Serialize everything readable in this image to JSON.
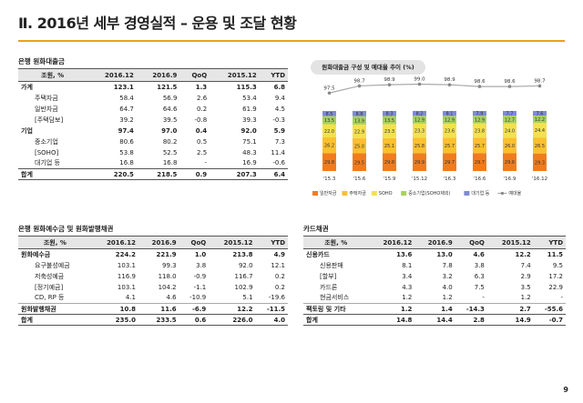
{
  "title": "Ⅱ. 2016년 세부 경영실적 – 운용 및 조달 현황",
  "page_number": "9",
  "loans": {
    "section_title": "은행 원화대출금",
    "headers": [
      "조원, %",
      "2016.12",
      "2016.9",
      "QoQ",
      "2015.12",
      "YTD"
    ],
    "rows": [
      {
        "label": "가계",
        "level": 0,
        "v": [
          "123.1",
          "121.5",
          "1.3",
          "115.3",
          "6.8"
        ]
      },
      {
        "label": "주택자금",
        "level": 1,
        "v": [
          "58.4",
          "56.9",
          "2.6",
          "53.4",
          "9.4"
        ]
      },
      {
        "label": "일반자금",
        "level": 1,
        "v": [
          "64.7",
          "64.6",
          "0.2",
          "61.9",
          "4.5"
        ]
      },
      {
        "label": "[주택담보]",
        "level": 2,
        "v": [
          "39.2",
          "39.5",
          "-0.8",
          "39.3",
          "-0.3"
        ]
      },
      {
        "label": "기업",
        "level": 0,
        "v": [
          "97.4",
          "97.0",
          "0.4",
          "92.0",
          "5.9"
        ]
      },
      {
        "label": "중소기업",
        "level": 1,
        "v": [
          "80.6",
          "80.2",
          "0.5",
          "75.1",
          "7.3"
        ]
      },
      {
        "label": "[SOHO]",
        "level": 2,
        "v": [
          "53.8",
          "52.5",
          "2.5",
          "48.3",
          "11.4"
        ]
      },
      {
        "label": "대기업 등",
        "level": 1,
        "v": [
          "16.8",
          "16.8",
          "-",
          "16.9",
          "-0.6"
        ]
      },
      {
        "label": "합계",
        "level": 0,
        "total": true,
        "v": [
          "220.5",
          "218.5",
          "0.9",
          "207.3",
          "6.4"
        ]
      }
    ]
  },
  "deposits": {
    "section_title": "은행 원화예수금 및 원화발행채권",
    "headers": [
      "조원, %",
      "2016.12",
      "2016.9",
      "QoQ",
      "2015.12",
      "YTD"
    ],
    "rows": [
      {
        "label": "원화예수금",
        "level": 0,
        "v": [
          "224.2",
          "221.9",
          "1.0",
          "213.8",
          "4.9"
        ]
      },
      {
        "label": "요구불성예금",
        "level": 1,
        "v": [
          "103.1",
          "99.3",
          "3.8",
          "92.0",
          "12.1"
        ]
      },
      {
        "label": "저축성예금",
        "level": 1,
        "v": [
          "116.9",
          "118.0",
          "-0.9",
          "116.7",
          "0.2"
        ]
      },
      {
        "label": "[정기예금]",
        "level": 2,
        "v": [
          "103.1",
          "104.2",
          "-1.1",
          "102.9",
          "0.2"
        ]
      },
      {
        "label": "CD, RP 등",
        "level": 1,
        "v": [
          "4.1",
          "4.6",
          "-10.9",
          "5.1",
          "-19.6"
        ]
      },
      {
        "label": "원화발행채권",
        "level": 0,
        "sep": true,
        "v": [
          "10.8",
          "11.6",
          "-6.9",
          "12.2",
          "-11.5"
        ]
      },
      {
        "label": "합계",
        "level": 0,
        "total": true,
        "v": [
          "235.0",
          "233.5",
          "0.6",
          "226.0",
          "4.0"
        ]
      }
    ]
  },
  "cards": {
    "section_title": "카드채권",
    "headers": [
      "조원, %",
      "2016.12",
      "2016.9",
      "QoQ",
      "2015.12",
      "YTD"
    ],
    "rows": [
      {
        "label": "신용카드",
        "level": 0,
        "v": [
          "13.6",
          "13.0",
          "4.6",
          "12.2",
          "11.5"
        ]
      },
      {
        "label": "신용판매",
        "level": 1,
        "v": [
          "8.1",
          "7.8",
          "3.8",
          "7.4",
          "9.5"
        ]
      },
      {
        "label": "[할부]",
        "level": 2,
        "v": [
          "3.4",
          "3.2",
          "6.3",
          "2.9",
          "17.2"
        ]
      },
      {
        "label": "카드론",
        "level": 1,
        "v": [
          "4.3",
          "4.0",
          "7.5",
          "3.5",
          "22.9"
        ]
      },
      {
        "label": "현금서비스",
        "level": 1,
        "v": [
          "1.2",
          "1.2",
          "-",
          "1.2",
          "-"
        ]
      },
      {
        "label": "팩토링 및 기타",
        "level": 0,
        "sep": true,
        "v": [
          "1.2",
          "1.4",
          "-14.3",
          "2.7",
          "-55.6"
        ]
      },
      {
        "label": "합계",
        "level": 0,
        "total": true,
        "v": [
          "14.8",
          "14.4",
          "2.8",
          "14.9",
          "-0.7"
        ]
      }
    ]
  },
  "chart_data": {
    "type": "bar",
    "title": "원화대출금 구성 및 예대율 추이 (%)",
    "categories": [
      "'15.3",
      "'15.6",
      "'15.9",
      "'15.12",
      "'16.3",
      "'16.6",
      "'16.9",
      "'16.12"
    ],
    "series": [
      {
        "name": "일반자금",
        "color": "#f07c1e",
        "values": [
          29.8,
          29.5,
          29.8,
          29.9,
          29.7,
          29.7,
          29.6,
          29.3
        ]
      },
      {
        "name": "주택자금",
        "color": "#fbc02d",
        "values": [
          26.2,
          25.0,
          25.1,
          25.8,
          25.7,
          25.7,
          26.0,
          26.5
        ]
      },
      {
        "name": "SOHO",
        "color": "#f3e14d",
        "values": [
          22.0,
          22.9,
          23.3,
          23.3,
          23.6,
          23.8,
          24.0,
          24.4
        ]
      },
      {
        "name": "중소기업(SOHO제외)",
        "color": "#a8d25a",
        "values": [
          13.5,
          13.9,
          13.5,
          12.9,
          12.9,
          12.9,
          12.7,
          12.2
        ]
      },
      {
        "name": "대기업 등",
        "color": "#7f8bd6",
        "values": [
          8.5,
          8.8,
          8.3,
          8.2,
          8.1,
          7.9,
          7.7,
          7.6
        ]
      }
    ],
    "line": {
      "name": "예대율",
      "color": "#aaaaaa",
      "values": [
        97.5,
        98.7,
        98.9,
        99.0,
        98.9,
        98.6,
        98.6,
        98.7
      ]
    }
  }
}
